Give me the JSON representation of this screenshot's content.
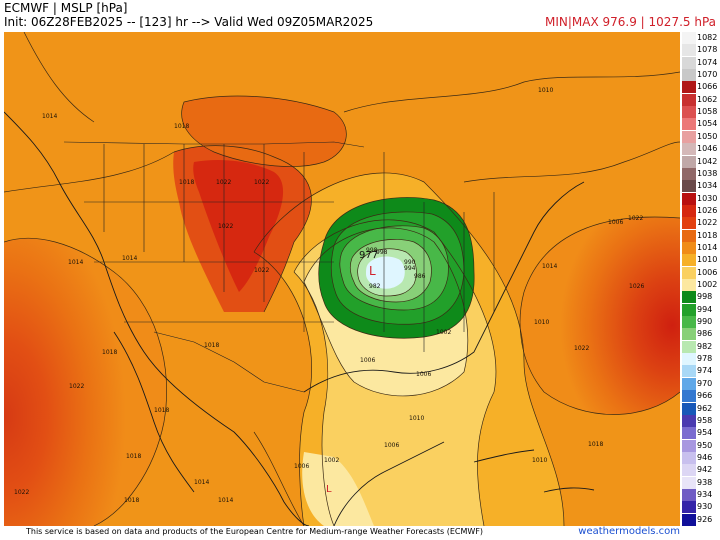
{
  "header": {
    "title": "ECMWF | MSLP [hPa]",
    "init_line": "Init: 06Z28FEB2025 -- [123] hr --> Valid Wed 09Z05MAR2025",
    "minmax": "MIN|MAX 976.9 | 1027.5 hPa"
  },
  "map": {
    "low_marker": "L",
    "low_center_value": "977",
    "low_secondary_value": "982",
    "isobar_labels": [
      "1014",
      "1014",
      "1014",
      "1018",
      "1018",
      "1018",
      "1018",
      "1018",
      "1018",
      "1022",
      "1022",
      "1022",
      "1022",
      "1022",
      "1022",
      "1022",
      "1026",
      "1010",
      "1010",
      "1010",
      "1010",
      "1006",
      "1006",
      "1006",
      "1006",
      "1006",
      "1002",
      "1002",
      "998",
      "998",
      "994",
      "990",
      "986",
      "1014",
      "1014",
      "1018",
      "1022",
      "1018",
      "1014"
    ]
  },
  "legend": {
    "levels": [
      "1082",
      "1078",
      "1074",
      "1070",
      "1066",
      "1062",
      "1058",
      "1054",
      "1050",
      "1046",
      "1042",
      "1038",
      "1034",
      "1030",
      "1026",
      "1022",
      "1018",
      "1014",
      "1010",
      "1006",
      "1002",
      "998",
      "994",
      "990",
      "986",
      "982",
      "978",
      "974",
      "970",
      "966",
      "962",
      "958",
      "954",
      "950",
      "946",
      "942",
      "938",
      "934",
      "930",
      "926"
    ],
    "colors": [
      "#f4f4f4",
      "#e6e6e6",
      "#d8d8d8",
      "#c8c8c8",
      "#b01818",
      "#c83030",
      "#dc5050",
      "#ec7878",
      "#e8a0a0",
      "#d4b8b8",
      "#c0a8a8",
      "#906868",
      "#6a4a4a",
      "#b81010",
      "#d62810",
      "#e24010",
      "#e86a12",
      "#f08c18",
      "#f6b028",
      "#fad060",
      "#fce8a0",
      "#0e8a1a",
      "#22a02a",
      "#48b848",
      "#88d078",
      "#b8e8b0",
      "#dff6ff",
      "#a8d8f6",
      "#60a8e8",
      "#3478d0",
      "#1858b8",
      "#4a3ab0",
      "#7a6cd0",
      "#a898e0",
      "#c8c0ee",
      "#dcd6f4",
      "#e8e4f8",
      "#6f5cc4",
      "#3424a8",
      "#10109a"
    ]
  },
  "footer": {
    "credit": "This service is based on data and products of the European Centre for Medium-range Weather Forecasts (ECMWF)",
    "brand": "weathermodels.com"
  }
}
